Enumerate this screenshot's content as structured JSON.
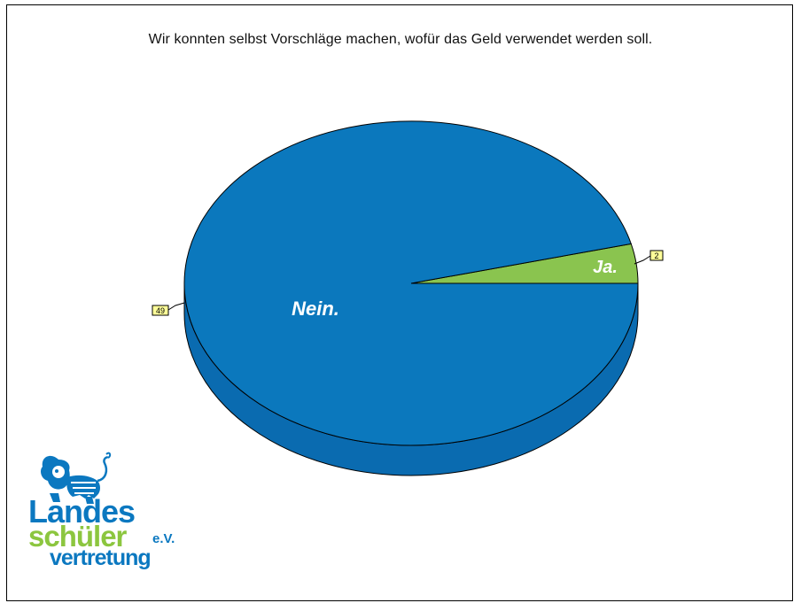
{
  "chart_data": {
    "type": "pie",
    "title": "Wir konnten selbst Vorschläge machen, wofür das Geld verwendet werden soll.",
    "three_d": true,
    "slices": [
      {
        "label": "Ja.",
        "value": 2,
        "value_label": "2",
        "color": "#8ac44f"
      },
      {
        "label": "Nein.",
        "value": 49,
        "value_label": "49",
        "color": "#0b78bd"
      }
    ],
    "side_color": "#0a6bb0",
    "value_box_color": "#ffff99"
  },
  "logo": {
    "line1": "Landes",
    "line2": "schüler",
    "suffix": "e.V.",
    "line3": "vertretung",
    "icon": "lion-icon"
  }
}
